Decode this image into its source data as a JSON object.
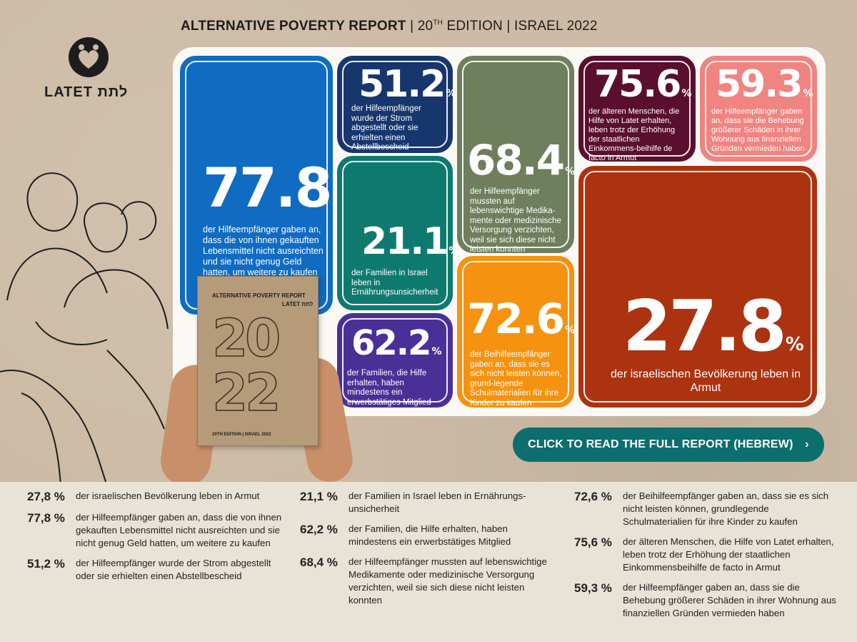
{
  "header": {
    "title_bold": "ALTERNATIVE POVERTY REPORT",
    "sep": "|",
    "edition_num": "20",
    "edition_sup": "TH",
    "edition_word": "EDITION",
    "country_year": "ISRAEL 2022"
  },
  "logo": {
    "text": "LATET לתת"
  },
  "cards": {
    "blue": {
      "num": "77.8",
      "pct": "%",
      "text": "der Hilfeempfänger gaben an, dass die von ihnen gekauften Lebensmittel nicht ausreichten und sie nicht genug Geld hatten, um weitere zu kaufen"
    },
    "navy": {
      "num": "51.2",
      "pct": "%",
      "text": "der Hilfeempfänger wurde der Strom abgestellt oder sie erhielten einen Abstellbescheid"
    },
    "teal": {
      "num": "21.1",
      "pct": "%",
      "text": "der Familien in Israel leben in Ernährungsunsicherheit"
    },
    "violet": {
      "num": "62.2",
      "pct": "%",
      "text": "der Familien, die Hilfe erhalten, haben mindestens ein erwerbstätiges Mitglied"
    },
    "olive": {
      "num": "68.4",
      "pct": "%",
      "text": "der Hilfeempfänger mussten auf lebenswichtige Medika-mente oder medizinische Versorgung verzichten, weil sie sich diese nicht leisten konnten"
    },
    "orange": {
      "num": "72.6",
      "pct": "%",
      "text": "der Beihilfeempfänger gaben an, dass sie es sich nicht leisten können, grund-legende Schulmaterialien für ihre Kinder zu kaufen"
    },
    "plum": {
      "num": "75.6",
      "pct": "%",
      "text": "der älteren Menschen, die Hilfe von Latet erhalten, leben trotz der Erhöhung der staatlichen Einkommens-beihilfe de facto in Armut"
    },
    "pink": {
      "num": "59.3",
      "pct": "%",
      "text": "der Hilfeempfänger gaben an, dass sie die Behebung größerer Schäden in ihrer Wohnung aus finanziellen Gründen vermieden haben"
    },
    "rust": {
      "num": "27.8",
      "pct": "%",
      "text": "der israelischen Bevölkerung leben in Armut"
    }
  },
  "book": {
    "title": "ALTERNATIVE POVERTY REPORT",
    "logo": "LATET לתת",
    "year_top": "20",
    "year_bottom": "22",
    "edition": "20TH EDITION | ISRAEL 2022"
  },
  "cta": {
    "label": "CLICK TO READ THE FULL REPORT (HEBREW)",
    "arrow": "›"
  },
  "stats": {
    "col1": [
      {
        "pct": "27,8 %",
        "text": "der israelischen Bevölkerung leben in Armut"
      },
      {
        "pct": "77,8 %",
        "text": "der Hilfeempfänger gaben an, dass die von ihnen gekauften Lebensmittel nicht ausreichten und sie nicht genug Geld hatten, um weitere zu kaufen"
      },
      {
        "pct": "51,2 %",
        "text": "der Hilfeempfänger wurde der Strom abgestellt oder sie erhielten einen Abstellbescheid"
      }
    ],
    "col2": [
      {
        "pct": "21,1 %",
        "text": "der Familien in Israel leben in Ernährungs-unsicherheit"
      },
      {
        "pct": "62,2 %",
        "text": "der Familien, die Hilfe erhalten, haben mindestens ein erwerbstätiges Mitglied"
      },
      {
        "pct": "68,4 %",
        "text": "der Hilfeempfänger mussten auf lebenswichtige Medikamente oder medizinische Versorgung verzichten, weil sie sich diese nicht leisten konnten"
      }
    ],
    "col3": [
      {
        "pct": "72,6 %",
        "text": "der Beihilfeempfänger gaben an, dass sie es sich nicht leisten können, grundlegende Schulmaterialien für ihre Kinder zu kaufen"
      },
      {
        "pct": "75,6 %",
        "text": "der älteren Menschen, die Hilfe von Latet erhalten, leben trotz der Erhöhung der staatlichen Einkommensbeihilfe de facto in Armut"
      },
      {
        "pct": "59,3 %",
        "text": "der Hilfeempfänger gaben an, dass sie die Behebung größerer Schäden in ihrer Wohnung aus finanziellen Gründen vermieden haben"
      }
    ]
  }
}
